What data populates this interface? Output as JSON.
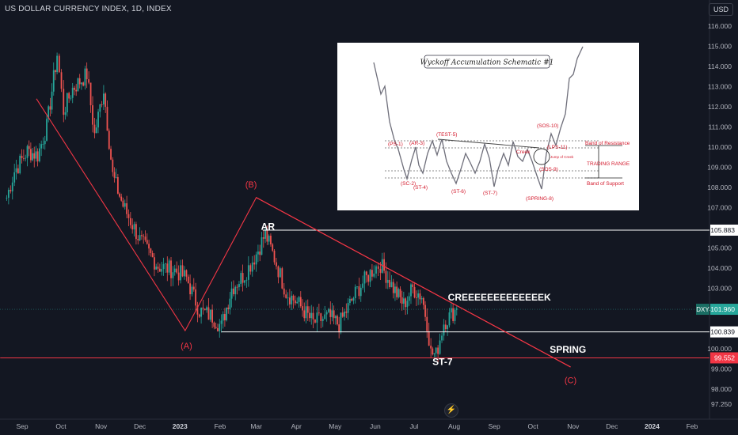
{
  "header": {
    "title": "US DOLLAR CURRENCY INDEX, 1D, INDEX",
    "currency": "USD"
  },
  "colors": {
    "background": "#131722",
    "up": "#26a69a",
    "down": "#ef5350",
    "annotation": "#f23645",
    "text": "#b2b5be",
    "white": "#ffffff"
  },
  "chart_data": {
    "type": "candlestick",
    "symbol": "DXY",
    "ylim": [
      97.1,
      116.9
    ],
    "y_ticks": [
      "116.000",
      "115.000",
      "114.000",
      "113.000",
      "112.000",
      "111.000",
      "110.000",
      "109.000",
      "108.000",
      "107.000",
      "105.000",
      "104.000",
      "103.000",
      "102.000",
      "100.000",
      "99.000",
      "98.000",
      "97.250"
    ],
    "x_ticks": [
      "Sep",
      "Oct",
      "Nov",
      "Dec",
      "2023",
      "Feb",
      "Mar",
      "Apr",
      "May",
      "Jun",
      "Jul",
      "Aug",
      "Sep",
      "Oct",
      "Nov",
      "Dec",
      "2024",
      "Feb"
    ],
    "price_path": [
      [
        "2022-08-20",
        107.5
      ],
      [
        "2022-08-26",
        108.8
      ],
      [
        "2022-09-05",
        109.8
      ],
      [
        "2022-09-13",
        109.6
      ],
      [
        "2022-09-20",
        111.0
      ],
      [
        "2022-09-28",
        114.6
      ],
      [
        "2022-10-03",
        111.8
      ],
      [
        "2022-10-10",
        112.9
      ],
      [
        "2022-10-21",
        113.6
      ],
      [
        "2022-10-27",
        110.6
      ],
      [
        "2022-11-03",
        112.9
      ],
      [
        "2022-11-10",
        108.6
      ],
      [
        "2022-11-18",
        107.1
      ],
      [
        "2022-12-01",
        105.4
      ],
      [
        "2022-12-15",
        104.1
      ],
      [
        "2022-12-28",
        103.9
      ],
      [
        "2023-01-06",
        103.5
      ],
      [
        "2023-01-16",
        101.9
      ],
      [
        "2023-01-26",
        101.6
      ],
      [
        "2023-02-02",
        101.1
      ],
      [
        "2023-02-10",
        103.0
      ],
      [
        "2023-02-20",
        103.7
      ],
      [
        "2023-03-01",
        104.7
      ],
      [
        "2023-03-08",
        105.7
      ],
      [
        "2023-03-15",
        104.5
      ],
      [
        "2023-03-24",
        102.8
      ],
      [
        "2023-04-03",
        102.2
      ],
      [
        "2023-04-14",
        101.3
      ],
      [
        "2023-04-26",
        101.6
      ],
      [
        "2023-05-04",
        101.2
      ],
      [
        "2023-05-18",
        102.9
      ],
      [
        "2023-05-31",
        104.0
      ],
      [
        "2023-06-05",
        104.2
      ],
      [
        "2023-06-15",
        103.0
      ],
      [
        "2023-06-23",
        102.2
      ],
      [
        "2023-06-30",
        103.0
      ],
      [
        "2023-07-07",
        102.6
      ],
      [
        "2023-07-11",
        101.3
      ],
      [
        "2023-07-14",
        99.8
      ],
      [
        "2023-07-18",
        99.7
      ],
      [
        "2023-07-24",
        101.3
      ],
      [
        "2023-08-03",
        102.0
      ]
    ],
    "last_price": "101.960",
    "price_labels": [
      {
        "name": "ar-level",
        "value": "105.883",
        "y": 105.883,
        "style": "white"
      },
      {
        "name": "support-level",
        "value": "100.839",
        "y": 100.839,
        "style": "white"
      },
      {
        "name": "spring-level",
        "value": "99.552",
        "y": 99.552,
        "style": "red"
      },
      {
        "name": "last",
        "symbol": "DXY",
        "value": "101.960",
        "y": 101.96,
        "style": "green"
      }
    ],
    "annotations": {
      "wave_points": [
        [
          "2022-09-12",
          112.4
        ],
        [
          "2023-01-05",
          100.9
        ],
        [
          "2023-03-01",
          107.5
        ],
        [
          "2023-10-30",
          99.1
        ]
      ],
      "wave_labels": [
        {
          "text": "(A)",
          "at": [
            "2023-01-06",
            100.0
          ]
        },
        {
          "text": "(B)",
          "at": [
            "2023-02-25",
            108.0
          ]
        },
        {
          "text": "(C)",
          "at": [
            "2023-10-30",
            98.3
          ]
        }
      ],
      "trend_line": [
        [
          "2023-03-01",
          107.5
        ],
        [
          "2023-10-30",
          99.1
        ]
      ],
      "ar_line": {
        "from": "2023-03-06",
        "to_edge": true,
        "y": 105.883
      },
      "support_line": {
        "from": "2023-02-02",
        "to_edge": true,
        "y": 100.839
      },
      "spring_line": {
        "from": "2022-08-15",
        "to_edge": true,
        "y": 99.552
      },
      "text_labels": [
        {
          "text": "AR",
          "at": [
            "2023-03-10",
            105.9
          ]
        },
        {
          "text": "CREEEEEEEEEEEEEK",
          "at": [
            "2023-09-05",
            102.4
          ]
        },
        {
          "text": "SPRING",
          "at": [
            "2023-10-28",
            99.8
          ]
        },
        {
          "text": "ST-7",
          "at": [
            "2023-07-23",
            99.2
          ]
        }
      ]
    }
  },
  "inset": {
    "title": "Wyckoff Accumulation Schematic #1",
    "labels": {
      "ps": "(PS-1)",
      "sc": "(SC-2)",
      "ar": "(AR-3)",
      "st": "(ST-4)",
      "test": "(TEST-5)",
      "st6": "(ST-6)",
      "st7": "(ST-7)",
      "spring": "(SPRING-8)",
      "sos9": "(SOS-9)",
      "sos10": "(SOS-10)",
      "lps": "(LPS-11)",
      "creek": "Creek",
      "jump": "Jump of Creek",
      "resistance": "Band of Resistance",
      "range": "TRADING RANGE",
      "support": "Band of Support"
    }
  }
}
